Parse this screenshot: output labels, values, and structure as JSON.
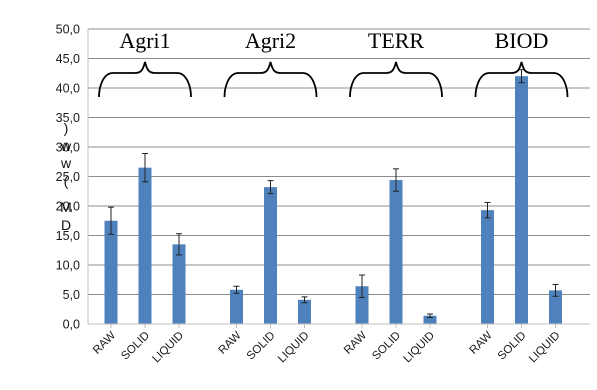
{
  "chart_data": {
    "type": "bar",
    "categories": [
      "RAW",
      "SOLID",
      "LIQUID"
    ],
    "groups": [
      {
        "label": "Agri1",
        "values": [
          17.5,
          26.5,
          13.5
        ],
        "errors": [
          2.3,
          2.4,
          1.8
        ]
      },
      {
        "label": "Agri2",
        "values": [
          5.8,
          23.2,
          4.1
        ],
        "errors": [
          0.6,
          1.1,
          0.5
        ]
      },
      {
        "label": "TERR",
        "values": [
          6.4,
          24.4,
          1.4
        ],
        "errors": [
          1.9,
          1.9,
          0.3
        ]
      },
      {
        "label": "BIOD",
        "values": [
          19.3,
          42.0,
          5.7
        ],
        "errors": [
          1.3,
          1.1,
          1.0
        ]
      }
    ],
    "ylabel": ") w w ( M D",
    "ylabel_chars": [
      ")",
      "w",
      "w",
      "(",
      "M",
      "D"
    ],
    "ylim": [
      0,
      50
    ],
    "yticks": [
      "0,0",
      "5,0",
      "10,0",
      "15,0",
      "20,0",
      "25,0",
      "30,0",
      "35,0",
      "40,0",
      "45,0",
      "50,0"
    ],
    "grid": true,
    "error_bars": true,
    "bar_color": "#4f81bd",
    "grid_color": "#8c8c8c",
    "axis_color": "#bfbfbf"
  }
}
